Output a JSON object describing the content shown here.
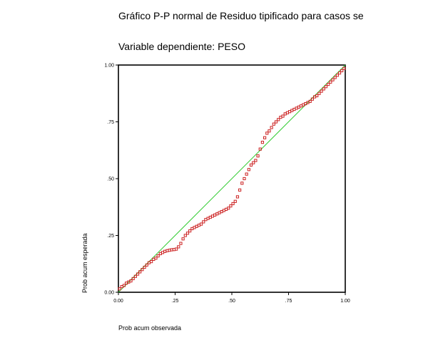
{
  "chart_data": {
    "type": "scatter",
    "title": "Gráfico P-P normal de Residuo tipificado para casos se",
    "subtitle": "Variable dependiente: PESO",
    "xlabel": "Prob acum observada",
    "ylabel": "Prob acum esperada",
    "xlim": [
      0,
      1
    ],
    "ylim": [
      0,
      1
    ],
    "x_ticks": [
      "0.00",
      ".25",
      ".50",
      ".75",
      "1.00"
    ],
    "y_ticks": [
      "0.00",
      ".25",
      ".50",
      ".75",
      "1.00"
    ],
    "grid": false,
    "legend": "none",
    "reference_line": {
      "from": [
        0,
        0
      ],
      "to": [
        1,
        1
      ],
      "color": "#33cc33"
    },
    "point_color": "#cc2222",
    "points": [
      [
        0.005,
        0.015
      ],
      [
        0.015,
        0.025
      ],
      [
        0.025,
        0.03
      ],
      [
        0.035,
        0.04
      ],
      [
        0.045,
        0.045
      ],
      [
        0.055,
        0.05
      ],
      [
        0.065,
        0.06
      ],
      [
        0.075,
        0.07
      ],
      [
        0.085,
        0.08
      ],
      [
        0.095,
        0.09
      ],
      [
        0.105,
        0.1
      ],
      [
        0.115,
        0.11
      ],
      [
        0.125,
        0.12
      ],
      [
        0.135,
        0.13
      ],
      [
        0.145,
        0.135
      ],
      [
        0.155,
        0.145
      ],
      [
        0.165,
        0.15
      ],
      [
        0.175,
        0.16
      ],
      [
        0.185,
        0.17
      ],
      [
        0.195,
        0.175
      ],
      [
        0.205,
        0.18
      ],
      [
        0.215,
        0.183
      ],
      [
        0.225,
        0.185
      ],
      [
        0.235,
        0.187
      ],
      [
        0.245,
        0.188
      ],
      [
        0.255,
        0.19
      ],
      [
        0.265,
        0.2
      ],
      [
        0.275,
        0.215
      ],
      [
        0.285,
        0.235
      ],
      [
        0.295,
        0.25
      ],
      [
        0.305,
        0.26
      ],
      [
        0.315,
        0.27
      ],
      [
        0.325,
        0.28
      ],
      [
        0.335,
        0.285
      ],
      [
        0.345,
        0.29
      ],
      [
        0.355,
        0.295
      ],
      [
        0.365,
        0.3
      ],
      [
        0.375,
        0.31
      ],
      [
        0.385,
        0.32
      ],
      [
        0.395,
        0.325
      ],
      [
        0.405,
        0.33
      ],
      [
        0.415,
        0.335
      ],
      [
        0.425,
        0.34
      ],
      [
        0.435,
        0.345
      ],
      [
        0.445,
        0.35
      ],
      [
        0.455,
        0.355
      ],
      [
        0.465,
        0.36
      ],
      [
        0.475,
        0.365
      ],
      [
        0.485,
        0.37
      ],
      [
        0.495,
        0.38
      ],
      [
        0.505,
        0.39
      ],
      [
        0.515,
        0.4
      ],
      [
        0.525,
        0.42
      ],
      [
        0.535,
        0.45
      ],
      [
        0.545,
        0.48
      ],
      [
        0.555,
        0.5
      ],
      [
        0.565,
        0.52
      ],
      [
        0.575,
        0.54
      ],
      [
        0.585,
        0.56
      ],
      [
        0.595,
        0.57
      ],
      [
        0.605,
        0.58
      ],
      [
        0.615,
        0.6
      ],
      [
        0.625,
        0.63
      ],
      [
        0.635,
        0.66
      ],
      [
        0.645,
        0.68
      ],
      [
        0.655,
        0.7
      ],
      [
        0.665,
        0.71
      ],
      [
        0.675,
        0.725
      ],
      [
        0.685,
        0.74
      ],
      [
        0.695,
        0.75
      ],
      [
        0.705,
        0.76
      ],
      [
        0.715,
        0.77
      ],
      [
        0.725,
        0.775
      ],
      [
        0.735,
        0.785
      ],
      [
        0.745,
        0.79
      ],
      [
        0.755,
        0.795
      ],
      [
        0.765,
        0.8
      ],
      [
        0.775,
        0.805
      ],
      [
        0.785,
        0.81
      ],
      [
        0.795,
        0.815
      ],
      [
        0.805,
        0.82
      ],
      [
        0.815,
        0.825
      ],
      [
        0.825,
        0.83
      ],
      [
        0.835,
        0.835
      ],
      [
        0.845,
        0.84
      ],
      [
        0.855,
        0.85
      ],
      [
        0.865,
        0.86
      ],
      [
        0.875,
        0.865
      ],
      [
        0.885,
        0.875
      ],
      [
        0.895,
        0.885
      ],
      [
        0.905,
        0.895
      ],
      [
        0.915,
        0.905
      ],
      [
        0.925,
        0.915
      ],
      [
        0.935,
        0.925
      ],
      [
        0.945,
        0.935
      ],
      [
        0.955,
        0.945
      ],
      [
        0.965,
        0.955
      ],
      [
        0.975,
        0.965
      ],
      [
        0.985,
        0.975
      ],
      [
        0.995,
        0.985
      ]
    ]
  }
}
